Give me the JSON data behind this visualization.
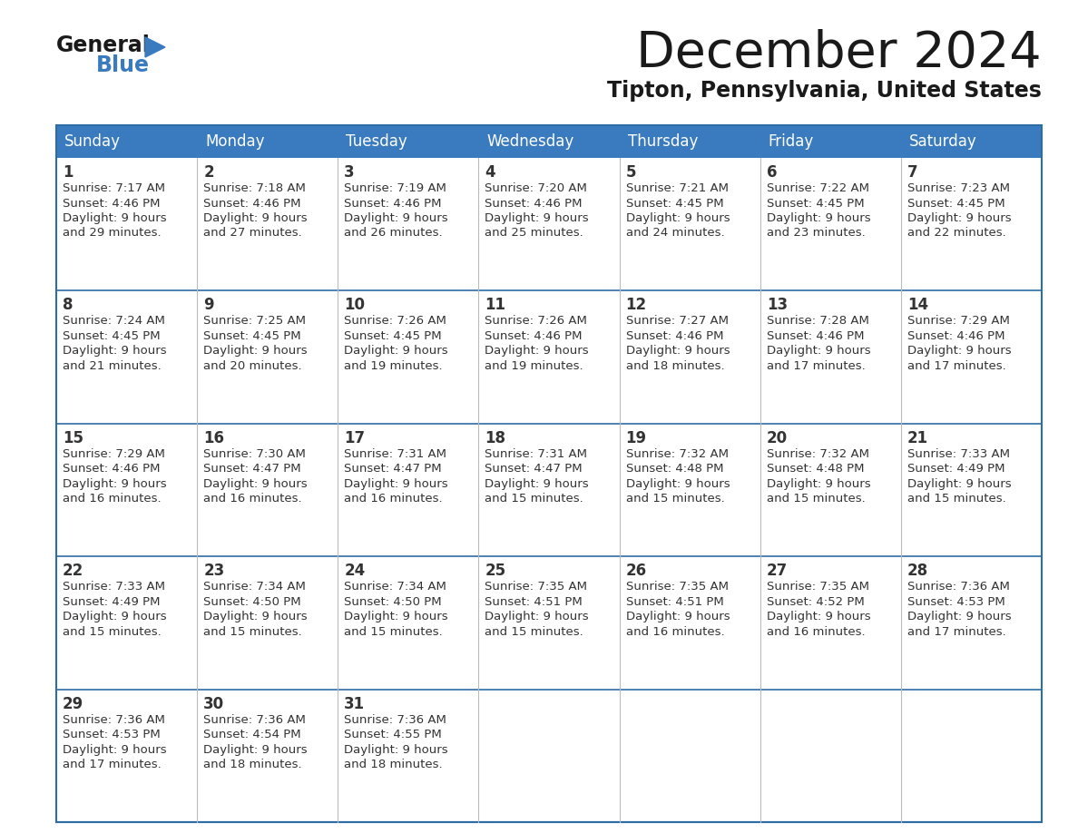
{
  "title": "December 2024",
  "subtitle": "Tipton, Pennsylvania, United States",
  "header_color": "#3a7abf",
  "header_text_color": "#ffffff",
  "border_color": "#2e6da4",
  "text_color": "#333333",
  "days_of_week": [
    "Sunday",
    "Monday",
    "Tuesday",
    "Wednesday",
    "Thursday",
    "Friday",
    "Saturday"
  ],
  "calendar": [
    [
      {
        "day": 1,
        "sunrise": "7:17 AM",
        "sunset": "4:46 PM",
        "daylight": "9 hours",
        "daylight2": "and 29 minutes."
      },
      {
        "day": 2,
        "sunrise": "7:18 AM",
        "sunset": "4:46 PM",
        "daylight": "9 hours",
        "daylight2": "and 27 minutes."
      },
      {
        "day": 3,
        "sunrise": "7:19 AM",
        "sunset": "4:46 PM",
        "daylight": "9 hours",
        "daylight2": "and 26 minutes."
      },
      {
        "day": 4,
        "sunrise": "7:20 AM",
        "sunset": "4:46 PM",
        "daylight": "9 hours",
        "daylight2": "and 25 minutes."
      },
      {
        "day": 5,
        "sunrise": "7:21 AM",
        "sunset": "4:45 PM",
        "daylight": "9 hours",
        "daylight2": "and 24 minutes."
      },
      {
        "day": 6,
        "sunrise": "7:22 AM",
        "sunset": "4:45 PM",
        "daylight": "9 hours",
        "daylight2": "and 23 minutes."
      },
      {
        "day": 7,
        "sunrise": "7:23 AM",
        "sunset": "4:45 PM",
        "daylight": "9 hours",
        "daylight2": "and 22 minutes."
      }
    ],
    [
      {
        "day": 8,
        "sunrise": "7:24 AM",
        "sunset": "4:45 PM",
        "daylight": "9 hours",
        "daylight2": "and 21 minutes."
      },
      {
        "day": 9,
        "sunrise": "7:25 AM",
        "sunset": "4:45 PM",
        "daylight": "9 hours",
        "daylight2": "and 20 minutes."
      },
      {
        "day": 10,
        "sunrise": "7:26 AM",
        "sunset": "4:45 PM",
        "daylight": "9 hours",
        "daylight2": "and 19 minutes."
      },
      {
        "day": 11,
        "sunrise": "7:26 AM",
        "sunset": "4:46 PM",
        "daylight": "9 hours",
        "daylight2": "and 19 minutes."
      },
      {
        "day": 12,
        "sunrise": "7:27 AM",
        "sunset": "4:46 PM",
        "daylight": "9 hours",
        "daylight2": "and 18 minutes."
      },
      {
        "day": 13,
        "sunrise": "7:28 AM",
        "sunset": "4:46 PM",
        "daylight": "9 hours",
        "daylight2": "and 17 minutes."
      },
      {
        "day": 14,
        "sunrise": "7:29 AM",
        "sunset": "4:46 PM",
        "daylight": "9 hours",
        "daylight2": "and 17 minutes."
      }
    ],
    [
      {
        "day": 15,
        "sunrise": "7:29 AM",
        "sunset": "4:46 PM",
        "daylight": "9 hours",
        "daylight2": "and 16 minutes."
      },
      {
        "day": 16,
        "sunrise": "7:30 AM",
        "sunset": "4:47 PM",
        "daylight": "9 hours",
        "daylight2": "and 16 minutes."
      },
      {
        "day": 17,
        "sunrise": "7:31 AM",
        "sunset": "4:47 PM",
        "daylight": "9 hours",
        "daylight2": "and 16 minutes."
      },
      {
        "day": 18,
        "sunrise": "7:31 AM",
        "sunset": "4:47 PM",
        "daylight": "9 hours",
        "daylight2": "and 15 minutes."
      },
      {
        "day": 19,
        "sunrise": "7:32 AM",
        "sunset": "4:48 PM",
        "daylight": "9 hours",
        "daylight2": "and 15 minutes."
      },
      {
        "day": 20,
        "sunrise": "7:32 AM",
        "sunset": "4:48 PM",
        "daylight": "9 hours",
        "daylight2": "and 15 minutes."
      },
      {
        "day": 21,
        "sunrise": "7:33 AM",
        "sunset": "4:49 PM",
        "daylight": "9 hours",
        "daylight2": "and 15 minutes."
      }
    ],
    [
      {
        "day": 22,
        "sunrise": "7:33 AM",
        "sunset": "4:49 PM",
        "daylight": "9 hours",
        "daylight2": "and 15 minutes."
      },
      {
        "day": 23,
        "sunrise": "7:34 AM",
        "sunset": "4:50 PM",
        "daylight": "9 hours",
        "daylight2": "and 15 minutes."
      },
      {
        "day": 24,
        "sunrise": "7:34 AM",
        "sunset": "4:50 PM",
        "daylight": "9 hours",
        "daylight2": "and 15 minutes."
      },
      {
        "day": 25,
        "sunrise": "7:35 AM",
        "sunset": "4:51 PM",
        "daylight": "9 hours",
        "daylight2": "and 15 minutes."
      },
      {
        "day": 26,
        "sunrise": "7:35 AM",
        "sunset": "4:51 PM",
        "daylight": "9 hours",
        "daylight2": "and 16 minutes."
      },
      {
        "day": 27,
        "sunrise": "7:35 AM",
        "sunset": "4:52 PM",
        "daylight": "9 hours",
        "daylight2": "and 16 minutes."
      },
      {
        "day": 28,
        "sunrise": "7:36 AM",
        "sunset": "4:53 PM",
        "daylight": "9 hours",
        "daylight2": "and 17 minutes."
      }
    ],
    [
      {
        "day": 29,
        "sunrise": "7:36 AM",
        "sunset": "4:53 PM",
        "daylight": "9 hours",
        "daylight2": "and 17 minutes."
      },
      {
        "day": 30,
        "sunrise": "7:36 AM",
        "sunset": "4:54 PM",
        "daylight": "9 hours",
        "daylight2": "and 18 minutes."
      },
      {
        "day": 31,
        "sunrise": "7:36 AM",
        "sunset": "4:55 PM",
        "daylight": "9 hours",
        "daylight2": "and 18 minutes."
      },
      null,
      null,
      null,
      null
    ]
  ],
  "figsize": [
    11.88,
    9.18
  ],
  "dpi": 100
}
